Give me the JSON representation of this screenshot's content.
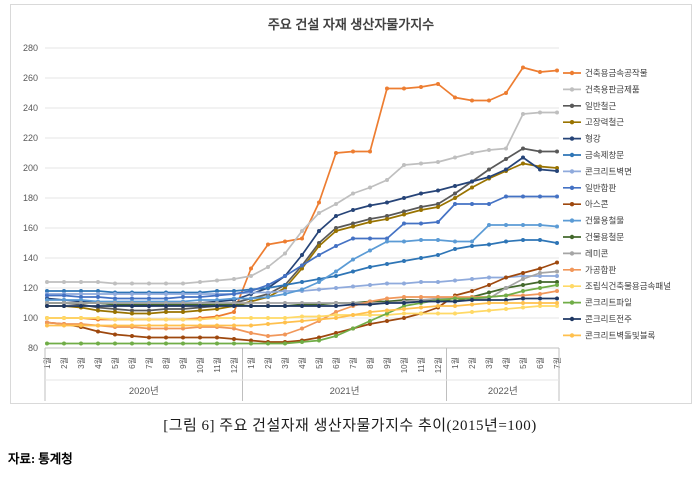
{
  "figure": {
    "caption": "[그림 6] 주요 건설자재 생산자물가지수 추이(2015년=100)",
    "source": "자료: 통계청"
  },
  "chart_data": {
    "type": "line",
    "title": "주요 건설 자재 생산자물가지수",
    "xlabel": "",
    "ylabel": "",
    "ylim": [
      80,
      280
    ],
    "ytick_step": 20,
    "grid": true,
    "legend_position": "right",
    "x_months": [
      "1월",
      "2월",
      "3월",
      "4월",
      "5월",
      "6월",
      "7월",
      "8월",
      "9월",
      "10월",
      "11월",
      "12월",
      "1월",
      "2월",
      "3월",
      "4월",
      "5월",
      "6월",
      "7월",
      "8월",
      "9월",
      "10월",
      "11월",
      "12월",
      "1월",
      "2월",
      "3월",
      "4월",
      "5월",
      "6월",
      "7월"
    ],
    "year_groups": [
      {
        "label": "2020년",
        "count": 12
      },
      {
        "label": "2021년",
        "count": 12
      },
      {
        "label": "2022년",
        "count": 7
      }
    ],
    "series": [
      {
        "name": "건축용금속공작물",
        "color": "#ED7D31",
        "values": [
          100,
          100,
          100,
          99,
          99,
          99,
          99,
          99,
          99,
          100,
          101,
          104,
          133,
          149,
          151,
          153,
          177,
          210,
          211,
          211,
          253,
          253,
          254,
          256,
          247,
          245,
          245,
          250,
          267,
          264,
          265
        ]
      },
      {
        "name": "건축용판금제품",
        "color": "#BFBFBF",
        "values": [
          124,
          124,
          124,
          124,
          123,
          123,
          123,
          123,
          123,
          124,
          125,
          126,
          128,
          134,
          143,
          158,
          170,
          176,
          183,
          187,
          192,
          202,
          203,
          204,
          207,
          210,
          212,
          213,
          236,
          237,
          237
        ]
      },
      {
        "name": "일반철근",
        "color": "#595959",
        "values": [
          110,
          110,
          109,
          107,
          106,
          105,
          105,
          106,
          106,
          107,
          108,
          110,
          113,
          116,
          122,
          135,
          150,
          160,
          163,
          166,
          168,
          171,
          174,
          176,
          183,
          191,
          199,
          206,
          213,
          211,
          211
        ]
      },
      {
        "name": "고장력철근",
        "color": "#997300",
        "values": [
          108,
          108,
          107,
          105,
          104,
          103,
          103,
          104,
          104,
          105,
          106,
          108,
          111,
          114,
          120,
          133,
          148,
          158,
          161,
          164,
          166,
          169,
          172,
          174,
          180,
          187,
          193,
          198,
          203,
          201,
          200
        ]
      },
      {
        "name": "형강",
        "color": "#264478",
        "values": [
          113,
          112,
          111,
          110,
          109,
          108,
          108,
          109,
          109,
          110,
          111,
          112,
          116,
          120,
          128,
          142,
          158,
          168,
          172,
          175,
          177,
          180,
          183,
          185,
          188,
          191,
          194,
          199,
          207,
          199,
          198
        ]
      },
      {
        "name": "금속제창문",
        "color": "#2E75B6",
        "values": [
          118,
          118,
          118,
          118,
          117,
          117,
          117,
          117,
          117,
          117,
          118,
          118,
          119,
          120,
          122,
          124,
          126,
          128,
          131,
          134,
          136,
          138,
          140,
          142,
          146,
          148,
          149,
          151,
          152,
          152,
          150
        ]
      },
      {
        "name": "콘크리트벽면",
        "color": "#8FAADC",
        "values": [
          116,
          116,
          116,
          116,
          116,
          116,
          116,
          116,
          116,
          116,
          116,
          116,
          117,
          117,
          118,
          118,
          119,
          120,
          121,
          122,
          123,
          123,
          124,
          124,
          125,
          126,
          127,
          127,
          128,
          128,
          128
        ]
      },
      {
        "name": "일반합판",
        "color": "#4472C4",
        "values": [
          115,
          115,
          114,
          114,
          113,
          113,
          113,
          113,
          114,
          114,
          115,
          116,
          118,
          122,
          128,
          135,
          142,
          148,
          153,
          153,
          153,
          163,
          163,
          164,
          176,
          176,
          176,
          181,
          181,
          181,
          181
        ]
      },
      {
        "name": "아스콘",
        "color": "#9E480E",
        "values": [
          97,
          96,
          94,
          91,
          89,
          88,
          87,
          87,
          87,
          87,
          87,
          86,
          85,
          84,
          84,
          85,
          87,
          90,
          93,
          96,
          98,
          100,
          103,
          107,
          115,
          118,
          122,
          127,
          130,
          133,
          137
        ]
      },
      {
        "name": "건물용철물",
        "color": "#5B9BD5",
        "values": [
          112,
          112,
          112,
          111,
          111,
          111,
          111,
          111,
          111,
          112,
          112,
          113,
          113,
          114,
          116,
          119,
          124,
          131,
          139,
          145,
          151,
          151,
          152,
          152,
          151,
          151,
          162,
          162,
          162,
          162,
          161
        ]
      },
      {
        "name": "건물용철문",
        "color": "#43682B",
        "values": [
          110,
          110,
          110,
          110,
          109,
          109,
          109,
          109,
          109,
          109,
          109,
          109,
          108,
          108,
          108,
          109,
          109,
          110,
          110,
          111,
          111,
          112,
          112,
          112,
          111,
          114,
          117,
          120,
          122,
          124,
          124
        ]
      },
      {
        "name": "레미콘",
        "color": "#A5A5A5",
        "values": [
          110,
          110,
          110,
          110,
          110,
          110,
          110,
          110,
          110,
          110,
          110,
          110,
          110,
          110,
          110,
          110,
          110,
          110,
          110,
          110,
          110,
          111,
          112,
          113,
          113,
          113,
          113,
          120,
          126,
          130,
          131
        ]
      },
      {
        "name": "가공합판",
        "color": "#F1975A",
        "values": [
          97,
          96,
          96,
          95,
          94,
          94,
          93,
          93,
          93,
          94,
          94,
          93,
          90,
          88,
          89,
          93,
          98,
          104,
          108,
          111,
          113,
          114,
          114,
          114,
          114,
          114,
          114,
          115,
          115,
          116,
          118
        ]
      },
      {
        "name": "조립식건축물용금속패널",
        "color": "#FFD966",
        "values": [
          100,
          100,
          100,
          100,
          99,
          99,
          99,
          99,
          99,
          99,
          100,
          100,
          100,
          100,
          100,
          101,
          101,
          102,
          102,
          102,
          102,
          103,
          103,
          103,
          103,
          104,
          105,
          106,
          107,
          108,
          108
        ]
      },
      {
        "name": "콘크리트파일",
        "color": "#70AD47",
        "values": [
          83,
          83,
          83,
          83,
          83,
          83,
          83,
          83,
          83,
          83,
          83,
          83,
          83,
          83,
          83,
          84,
          85,
          88,
          93,
          98,
          103,
          108,
          110,
          112,
          113,
          113,
          114,
          115,
          118,
          120,
          122
        ]
      },
      {
        "name": "콘크리트전주",
        "color": "#1F3864",
        "values": [
          108,
          108,
          108,
          108,
          108,
          108,
          108,
          108,
          108,
          108,
          108,
          108,
          108,
          108,
          108,
          108,
          108,
          108,
          109,
          109,
          110,
          110,
          111,
          111,
          111,
          112,
          112,
          112,
          113,
          113,
          113
        ]
      },
      {
        "name": "콘크리트벽돌및블록",
        "color": "#FFC04D",
        "values": [
          95,
          95,
          95,
          95,
          95,
          95,
          95,
          95,
          95,
          95,
          95,
          95,
          95,
          96,
          97,
          98,
          99,
          100,
          102,
          104,
          105,
          106,
          107,
          108,
          108,
          109,
          110,
          110,
          110,
          110,
          110
        ]
      }
    ]
  }
}
